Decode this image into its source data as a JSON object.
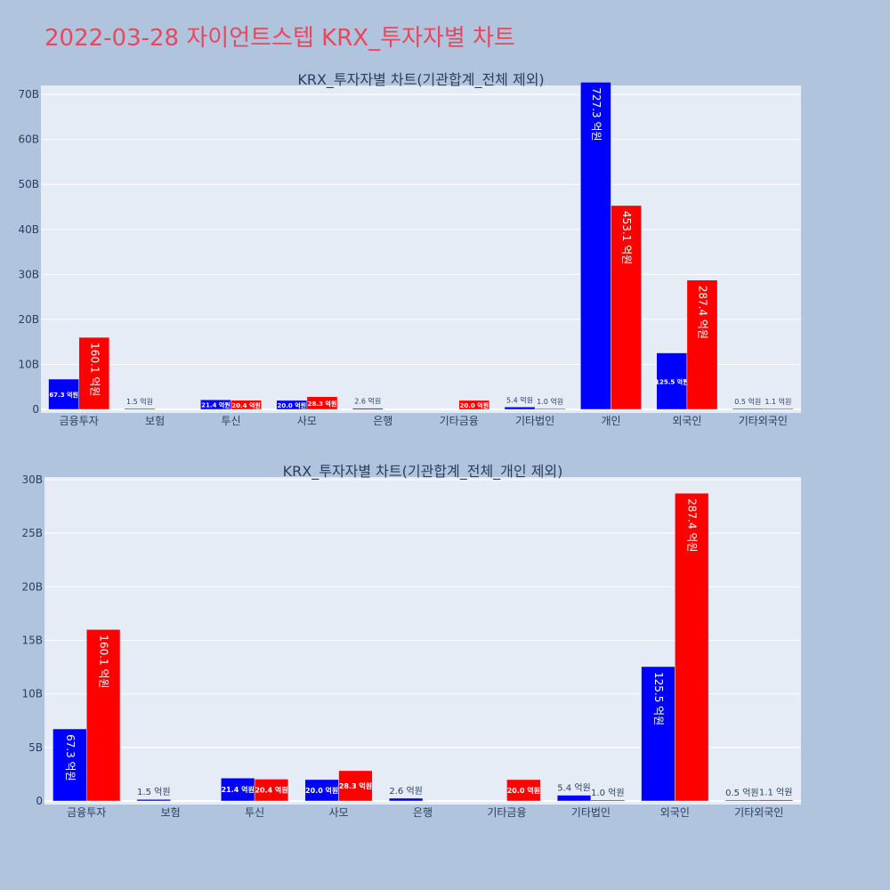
{
  "page": {
    "title": "2022-03-28 자이언트스텝 KRX_투자자별 차트"
  },
  "colors": {
    "background": "#b0c4de",
    "plot_bg": "#e5ecf6",
    "series_a": "#0000ff",
    "series_b": "#ff0000",
    "title": "#e8475d"
  },
  "chart_data": [
    {
      "type": "bar",
      "title": "KRX_투자자별 차트(기관합계_전체 제외)",
      "categories": [
        "금융투자",
        "보험",
        "투신",
        "사모",
        "은행",
        "기타금융",
        "기타법인",
        "개인",
        "외국인",
        "기타외국인"
      ],
      "ylim": [
        0,
        72000000000
      ],
      "yticks": [
        0,
        10000000000,
        20000000000,
        30000000000,
        40000000000,
        50000000000,
        60000000000,
        70000000000
      ],
      "ytick_labels": [
        "0",
        "10B",
        "20B",
        "30B",
        "40B",
        "50B",
        "60B",
        "70B"
      ],
      "grid": true,
      "series": [
        {
          "color": "#0000ff",
          "values": [
            6730000000,
            150000000,
            2140000000,
            2000000000,
            260000000,
            0,
            540000000,
            72730000000,
            12550000000,
            50000000
          ],
          "labels": [
            "67.3 억원",
            "1.5 억원",
            "21.4 억원",
            "20.0 억원",
            "2.6 억원",
            "",
            "5.4 억원",
            "727.3 억원",
            "125.5 억원",
            "0.5 억원"
          ]
        },
        {
          "color": "#ff0000",
          "values": [
            16010000000,
            0,
            2040000000,
            2830000000,
            0,
            2000000000,
            100000000,
            45310000000,
            28740000000,
            110000000
          ],
          "labels": [
            "160.1 억원",
            "",
            "20.4 억원",
            "28.3 억원",
            "",
            "20.0 억원",
            "1.0 억원",
            "453.1 억원",
            "287.4 억원",
            "1.1 억원"
          ]
        }
      ]
    },
    {
      "type": "bar",
      "title": "KRX_투자자별 차트(기관합계_전체_개인 제외)",
      "categories": [
        "금융투자",
        "보험",
        "투신",
        "사모",
        "은행",
        "기타금융",
        "기타법인",
        "외국인",
        "기타외국인"
      ],
      "ylim": [
        0,
        30250000000
      ],
      "yticks": [
        0,
        5000000000,
        10000000000,
        15000000000,
        20000000000,
        25000000000,
        30000000000
      ],
      "ytick_labels": [
        "0",
        "5B",
        "10B",
        "15B",
        "20B",
        "25B",
        "30B"
      ],
      "grid": true,
      "series": [
        {
          "color": "#0000ff",
          "values": [
            6730000000,
            150000000,
            2140000000,
            2000000000,
            260000000,
            0,
            540000000,
            12550000000,
            50000000
          ],
          "labels": [
            "67.3 억원",
            "1.5 억원",
            "21.4 억원",
            "20.0 억원",
            "2.6 억원",
            "",
            "5.4 억원",
            "125.5 억원",
            "0.5 억원"
          ]
        },
        {
          "color": "#ff0000",
          "values": [
            16010000000,
            0,
            2040000000,
            2830000000,
            0,
            2000000000,
            100000000,
            28740000000,
            110000000
          ],
          "labels": [
            "160.1 억원",
            "",
            "20.4 억원",
            "28.3 억원",
            "",
            "20.0 억원",
            "1.0 억원",
            "287.4 억원",
            "1.1 억원"
          ]
        }
      ]
    }
  ]
}
